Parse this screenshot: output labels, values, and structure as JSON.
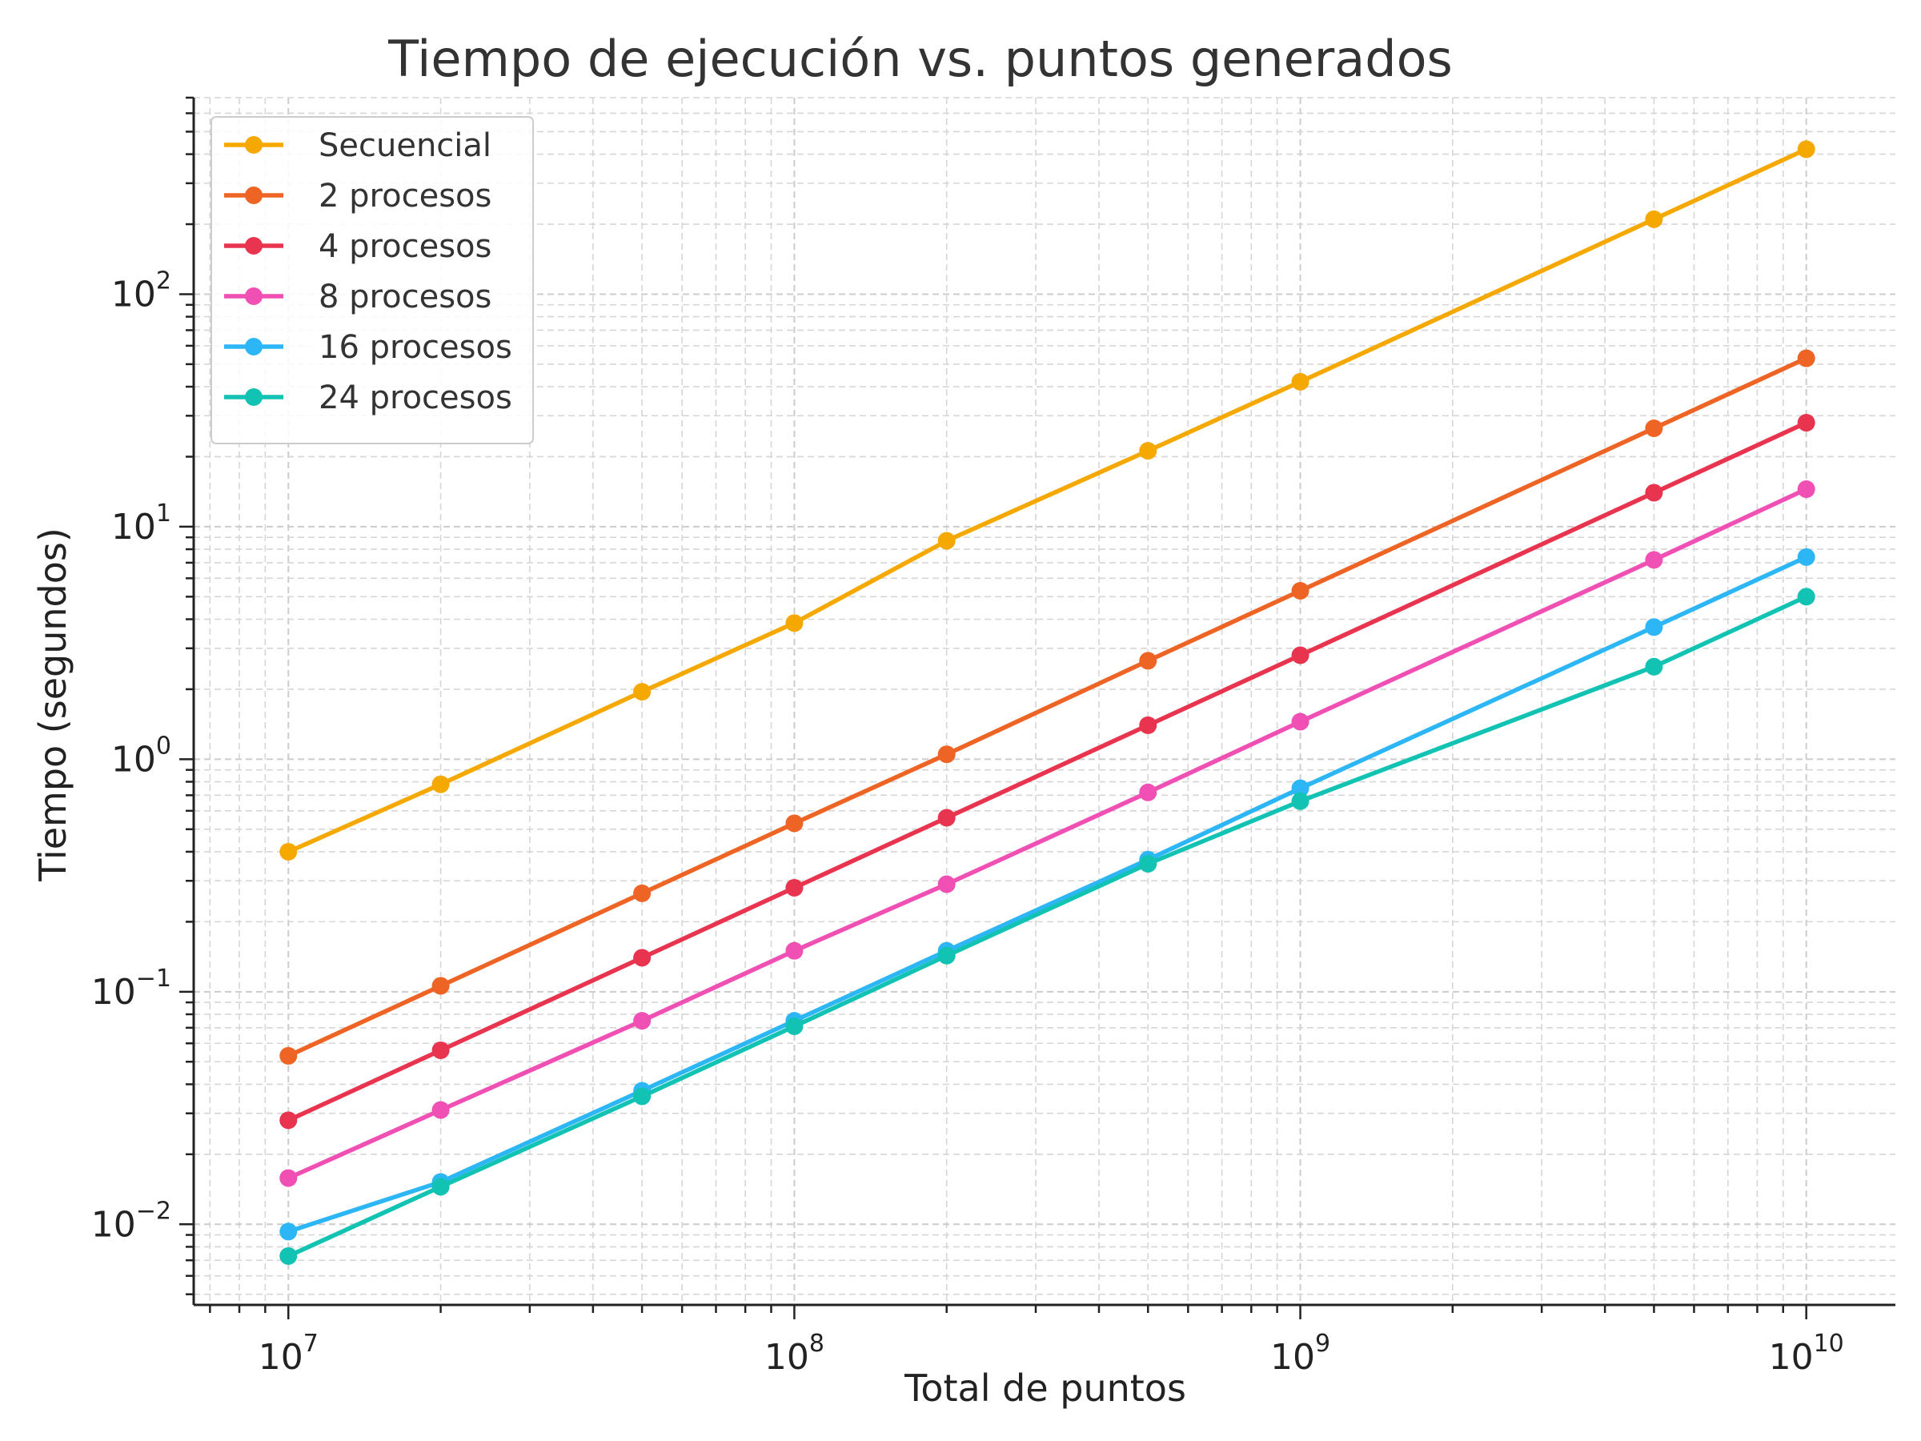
{
  "chart_data": {
    "type": "line",
    "title": "Tiempo de ejecución vs. puntos generados",
    "xlabel": "Total de puntos",
    "ylabel": "Tiempo (segundos)",
    "x_scale": "log",
    "y_scale": "log",
    "xlim": [
      6500000.0,
      15000000000.0
    ],
    "ylim": [
      0.0045,
      700
    ],
    "grid": true,
    "legend": "top-left",
    "x_ticks": [
      {
        "base": "10",
        "exp": "7",
        "value": 10000000.0
      },
      {
        "base": "10",
        "exp": "8",
        "value": 100000000.0
      },
      {
        "base": "10",
        "exp": "9",
        "value": 1000000000.0
      },
      {
        "base": "10",
        "exp": "10",
        "value": 10000000000.0
      }
    ],
    "y_ticks": [
      {
        "base": "10",
        "exp": "−2",
        "value": 0.01
      },
      {
        "base": "10",
        "exp": "−1",
        "value": 0.1
      },
      {
        "base": "10",
        "exp": "0",
        "value": 1
      },
      {
        "base": "10",
        "exp": "1",
        "value": 10
      },
      {
        "base": "10",
        "exp": "2",
        "value": 100
      }
    ],
    "x": [
      10000000.0,
      20000000.0,
      50000000.0,
      100000000.0,
      200000000.0,
      500000000.0,
      1000000000.0,
      5000000000.0,
      10000000000.0
    ],
    "series": [
      {
        "name": "Secuencial",
        "color": "#F5A800",
        "values": [
          0.4,
          0.78,
          1.95,
          3.85,
          8.7,
          21.2,
          42.0,
          210.0,
          420.0
        ]
      },
      {
        "name": "2 procesos",
        "color": "#EE6424",
        "values": [
          0.053,
          0.106,
          0.265,
          0.53,
          1.05,
          2.65,
          5.3,
          26.5,
          53.0
        ]
      },
      {
        "name": "4 procesos",
        "color": "#E8344E",
        "values": [
          0.028,
          0.056,
          0.14,
          0.28,
          0.56,
          1.4,
          2.8,
          14.0,
          28.0
        ]
      },
      {
        "name": "8 procesos",
        "color": "#F050B4",
        "values": [
          0.0158,
          0.031,
          0.075,
          0.15,
          0.29,
          0.72,
          1.45,
          7.2,
          14.5
        ]
      },
      {
        "name": "16 procesos",
        "color": "#2DB6F5",
        "values": [
          0.0093,
          0.0152,
          0.0375,
          0.075,
          0.15,
          0.37,
          0.75,
          3.7,
          7.4
        ]
      },
      {
        "name": "24 procesos",
        "color": "#12C3B4",
        "values": [
          0.0073,
          0.0145,
          0.0355,
          0.071,
          0.143,
          0.355,
          0.66,
          2.5,
          5.0
        ]
      }
    ]
  }
}
